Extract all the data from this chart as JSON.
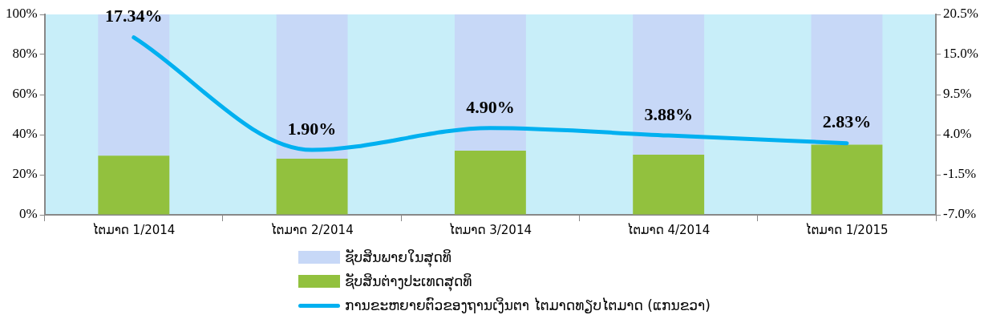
{
  "chart_data": {
    "type": "bar",
    "stacked": true,
    "categories": [
      "ໄຕມາດ 1/2014",
      "ໄຕມາດ 2/2014",
      "ໄຕມາດ 3/2014",
      "ໄຕມາດ 4/2014",
      "ໄຕມາດ 1/2015"
    ],
    "series": [
      {
        "name": "ຊັບສິນຕ່າງປະເທດສຸດທິ",
        "color": "#92c13e",
        "values": [
          29.5,
          28,
          32,
          30,
          35
        ]
      },
      {
        "name": "ຊັບສິນພາຍໃນສຸດທິ",
        "color": "#c7d8f7",
        "values": [
          70.5,
          72,
          68,
          70,
          65
        ]
      },
      {
        "name": "ການຂະຫຍາຍຕົວຂອງຖານເງິນຕາ ໄຕມາດທຽບໄຕມາດ (ແກນຂວາ)",
        "type": "line",
        "axis": "y2",
        "color": "#00b0f0",
        "values": [
          17.34,
          1.9,
          4.9,
          3.88,
          2.83
        ],
        "value_labels": [
          "17.34%",
          "1.90%",
          "4.90%",
          "3.88%",
          "2.83%"
        ]
      }
    ],
    "ylim": [
      0,
      100
    ],
    "yticks": [
      {
        "value": 0,
        "label": "0%"
      },
      {
        "value": 20,
        "label": "20%"
      },
      {
        "value": 40,
        "label": "40%"
      },
      {
        "value": 60,
        "label": "60%"
      },
      {
        "value": 80,
        "label": "80%"
      },
      {
        "value": 100,
        "label": "100%"
      }
    ],
    "y2lim": [
      -7,
      20.5
    ],
    "y2ticks": [
      {
        "value": -7,
        "label": "-7.0%"
      },
      {
        "value": -1.5,
        "label": "-1.5%"
      },
      {
        "value": 4,
        "label": "4.0%"
      },
      {
        "value": 9.5,
        "label": "9.5%"
      },
      {
        "value": 15,
        "label": "15.0%"
      },
      {
        "value": 20.5,
        "label": "20.5%"
      }
    ],
    "grid": false,
    "legend": "bottom"
  }
}
